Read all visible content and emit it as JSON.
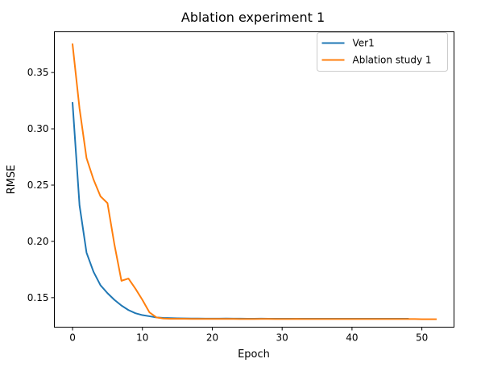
{
  "chart_data": {
    "type": "line",
    "title": "Ablation experiment 1",
    "xlabel": "Epoch",
    "ylabel": "RMSE",
    "xlim": [
      -2.6,
      54.6
    ],
    "ylim": [
      0.1238,
      0.3862
    ],
    "x_ticks": [
      0,
      10,
      20,
      30,
      40,
      50
    ],
    "y_ticks": [
      0.15,
      0.2,
      0.25,
      0.3,
      0.35
    ],
    "x_tick_labels": [
      "0",
      "10",
      "20",
      "30",
      "40",
      "50"
    ],
    "y_tick_labels": [
      "0.15",
      "0.20",
      "0.25",
      "0.30",
      "0.35"
    ],
    "grid": false,
    "legend_position": "top-right",
    "series": [
      {
        "name": "Ver1",
        "color": "#1f77b4",
        "x": [
          0,
          1,
          2,
          3,
          4,
          5,
          6,
          7,
          8,
          9,
          10,
          11,
          12,
          13,
          14,
          15,
          16,
          17,
          18,
          19,
          20,
          21,
          22,
          23,
          24,
          25,
          26,
          27,
          28,
          29,
          30,
          31,
          32,
          33,
          34,
          35,
          36,
          37,
          38,
          39,
          40,
          41,
          42,
          43,
          44,
          45,
          46,
          47,
          48
        ],
        "values": [
          0.323,
          0.232,
          0.19,
          0.173,
          0.161,
          0.154,
          0.148,
          0.143,
          0.139,
          0.1362,
          0.1345,
          0.1335,
          0.1325,
          0.132,
          0.1318,
          0.1317,
          0.1316,
          0.1315,
          0.1315,
          0.1314,
          0.1314,
          0.1314,
          0.1315,
          0.1314,
          0.1314,
          0.1313,
          0.1313,
          0.1314,
          0.1313,
          0.1313,
          0.1313,
          0.1313,
          0.1313,
          0.1313,
          0.1313,
          0.1313,
          0.1313,
          0.1313,
          0.1313,
          0.1313,
          0.1313,
          0.1313,
          0.1313,
          0.1313,
          0.1313,
          0.1313,
          0.1313,
          0.1313,
          0.1313
        ]
      },
      {
        "name": "Ablation study 1",
        "color": "#ff7f0e",
        "x": [
          0,
          1,
          2,
          3,
          4,
          5,
          6,
          7,
          8,
          9,
          10,
          11,
          12,
          13,
          14,
          15,
          16,
          17,
          18,
          19,
          20,
          21,
          22,
          23,
          24,
          25,
          26,
          27,
          28,
          29,
          30,
          31,
          32,
          33,
          34,
          35,
          36,
          37,
          38,
          39,
          40,
          41,
          42,
          43,
          44,
          45,
          46,
          47,
          48,
          49,
          50,
          51,
          52
        ],
        "values": [
          0.375,
          0.318,
          0.274,
          0.255,
          0.24,
          0.234,
          0.197,
          0.165,
          0.167,
          0.158,
          0.148,
          0.137,
          0.1325,
          0.1315,
          0.1312,
          0.1312,
          0.1312,
          0.1311,
          0.1311,
          0.1311,
          0.1311,
          0.1311,
          0.1311,
          0.1311,
          0.131,
          0.131,
          0.131,
          0.1311,
          0.1311,
          0.131,
          0.131,
          0.131,
          0.1311,
          0.131,
          0.131,
          0.131,
          0.131,
          0.131,
          0.131,
          0.131,
          0.131,
          0.131,
          0.131,
          0.131,
          0.131,
          0.131,
          0.131,
          0.131,
          0.131,
          0.131,
          0.1309,
          0.1309,
          0.1309
        ]
      }
    ]
  }
}
